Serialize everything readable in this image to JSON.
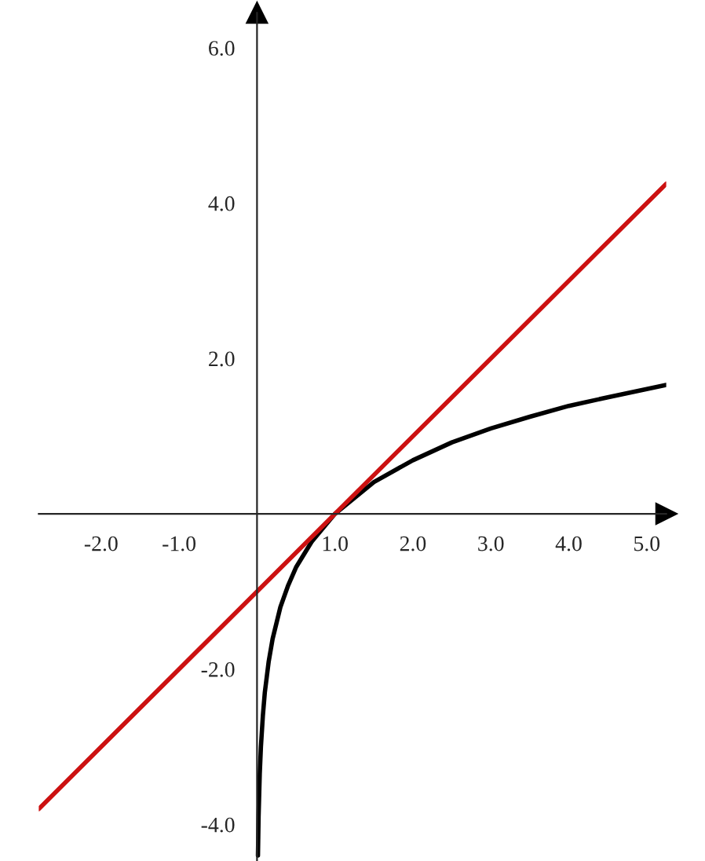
{
  "chart_data": {
    "type": "line",
    "series": [
      {
        "color": "#000000",
        "x": [
          0.012,
          0.02,
          0.035,
          0.05,
          0.075,
          0.1,
          0.15,
          0.2,
          0.3,
          0.4,
          0.5,
          0.7,
          1.0,
          1.5,
          2.0,
          2.5,
          3.0,
          3.5,
          4.0,
          4.5,
          5.25
        ],
        "values": [
          -4.4,
          -3.9,
          -3.35,
          -3.0,
          -2.6,
          -2.3,
          -1.9,
          -1.61,
          -1.2,
          -0.92,
          -0.69,
          -0.36,
          0.0,
          0.41,
          0.69,
          0.92,
          1.1,
          1.25,
          1.39,
          1.5,
          1.66
        ]
      },
      {
        "color": "#cc1111",
        "x": [
          -2.8,
          5.25
        ],
        "values": [
          -3.8,
          4.25
        ]
      }
    ],
    "xlim": [
      -2.8,
      5.25
    ],
    "ylim": [
      -4.47,
      6.45
    ],
    "xticks": [
      {
        "value": -2,
        "label": "-2.0"
      },
      {
        "value": -1,
        "label": "-1.0"
      },
      {
        "value": 1,
        "label": "1.0"
      },
      {
        "value": 2,
        "label": "2.0"
      },
      {
        "value": 3,
        "label": "3.0"
      },
      {
        "value": 4,
        "label": "4.0"
      },
      {
        "value": 5,
        "label": "5.0"
      }
    ],
    "yticks": [
      {
        "value": -4,
        "label": "-4.0"
      },
      {
        "value": -2,
        "label": "-2.0"
      },
      {
        "value": 2,
        "label": "2.0"
      },
      {
        "value": 4,
        "label": "4.0"
      },
      {
        "value": 6,
        "label": "6.0"
      }
    ],
    "grid": false,
    "marker": "none",
    "line_style": "solid"
  }
}
